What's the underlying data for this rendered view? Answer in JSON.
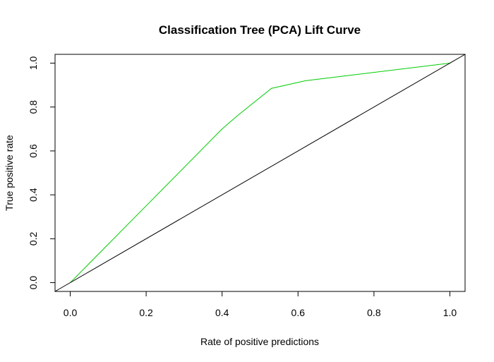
{
  "chart_data": {
    "type": "line",
    "title": "Classification Tree (PCA) Lift Curve",
    "xlabel": "Rate of positive predictions",
    "ylabel": "True positive rate",
    "xlim": [
      -0.04,
      1.04
    ],
    "ylim": [
      -0.04,
      1.04
    ],
    "x_ticks": [
      0.0,
      0.2,
      0.4,
      0.6,
      0.8,
      1.0
    ],
    "x_tick_labels": [
      "0.0",
      "0.2",
      "0.4",
      "0.6",
      "0.8",
      "1.0"
    ],
    "y_ticks": [
      0.0,
      0.2,
      0.4,
      0.6,
      0.8,
      1.0
    ],
    "y_tick_labels": [
      "0.0",
      "0.2",
      "0.4",
      "0.6",
      "0.8",
      "1.0"
    ],
    "grid": false,
    "series": [
      {
        "color": "#00cc00",
        "x": [
          0.0,
          0.2,
          0.4,
          0.44,
          0.53,
          0.62,
          1.0
        ],
        "y": [
          0.0,
          0.35,
          0.7,
          0.76,
          0.885,
          0.92,
          1.0
        ]
      },
      {
        "color": "#000000",
        "x": [
          -0.04,
          1.04
        ],
        "y": [
          -0.04,
          1.04
        ]
      }
    ]
  }
}
